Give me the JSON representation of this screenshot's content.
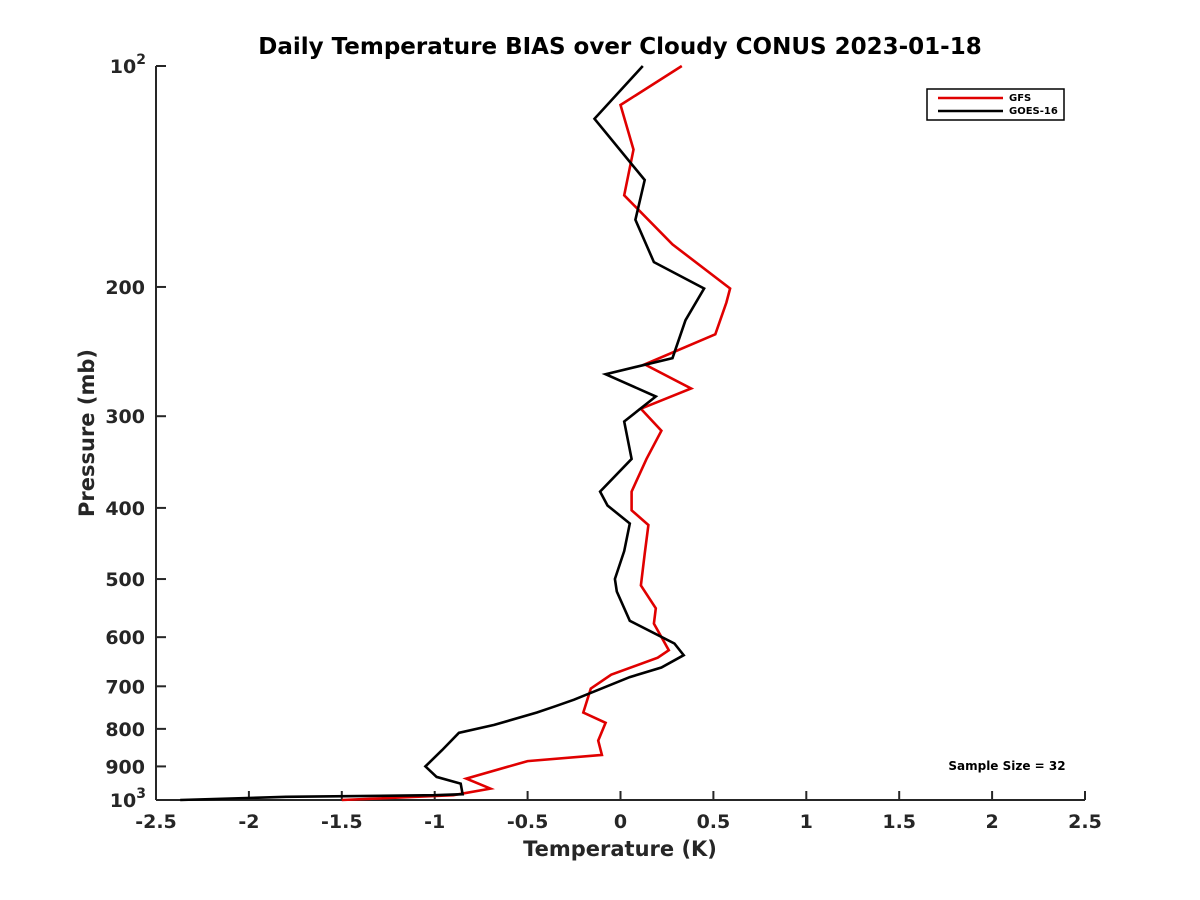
{
  "chart_data": {
    "type": "line",
    "title": "Daily Temperature BIAS over Cloudy CONUS 2023-01-18",
    "xlabel": "Temperature (K)",
    "ylabel": "Pressure (mb)",
    "xlim": [
      -2.5,
      2.5
    ],
    "ylim": [
      1000,
      100
    ],
    "y_scale": "log",
    "y_reversed": true,
    "grid": false,
    "legend_position": "top-right",
    "x_ticks": [
      {
        "value": -2.5,
        "label": "-2.5"
      },
      {
        "value": -2,
        "label": "-2"
      },
      {
        "value": -1.5,
        "label": "-1.5"
      },
      {
        "value": -1,
        "label": "-1"
      },
      {
        "value": -0.5,
        "label": "-0.5"
      },
      {
        "value": 0,
        "label": "0"
      },
      {
        "value": 0.5,
        "label": "0.5"
      },
      {
        "value": 1,
        "label": "1"
      },
      {
        "value": 1.5,
        "label": "1.5"
      },
      {
        "value": 2,
        "label": "2"
      },
      {
        "value": 2.5,
        "label": "2.5"
      }
    ],
    "y_ticks": [
      {
        "value": 100,
        "base": "10",
        "exp": "2"
      },
      {
        "value": 200,
        "label": "200"
      },
      {
        "value": 300,
        "label": "300"
      },
      {
        "value": 400,
        "label": "400"
      },
      {
        "value": 500,
        "label": "500"
      },
      {
        "value": 600,
        "label": "600"
      },
      {
        "value": 700,
        "label": "700"
      },
      {
        "value": 800,
        "label": "800"
      },
      {
        "value": 900,
        "label": "900"
      },
      {
        "value": 1000,
        "base": "10",
        "exp": "3"
      }
    ],
    "series": [
      {
        "name": "GFS",
        "color": "#e00000",
        "points": [
          {
            "x": -1.5,
            "p": 1000
          },
          {
            "x": -0.9,
            "p": 985
          },
          {
            "x": -0.7,
            "p": 965
          },
          {
            "x": -0.83,
            "p": 935
          },
          {
            "x": -0.5,
            "p": 885
          },
          {
            "x": -0.1,
            "p": 868
          },
          {
            "x": -0.12,
            "p": 830
          },
          {
            "x": -0.08,
            "p": 785
          },
          {
            "x": -0.2,
            "p": 760
          },
          {
            "x": -0.16,
            "p": 705
          },
          {
            "x": -0.05,
            "p": 675
          },
          {
            "x": 0.2,
            "p": 640
          },
          {
            "x": 0.26,
            "p": 625
          },
          {
            "x": 0.18,
            "p": 575
          },
          {
            "x": 0.19,
            "p": 548
          },
          {
            "x": 0.11,
            "p": 510
          },
          {
            "x": 0.13,
            "p": 462
          },
          {
            "x": 0.15,
            "p": 422
          },
          {
            "x": 0.06,
            "p": 403
          },
          {
            "x": 0.06,
            "p": 380
          },
          {
            "x": 0.14,
            "p": 343
          },
          {
            "x": 0.22,
            "p": 314
          },
          {
            "x": 0.11,
            "p": 293
          },
          {
            "x": 0.38,
            "p": 275
          },
          {
            "x": 0.13,
            "p": 255
          },
          {
            "x": 0.51,
            "p": 232
          },
          {
            "x": 0.57,
            "p": 210
          },
          {
            "x": 0.59,
            "p": 201
          },
          {
            "x": 0.28,
            "p": 175
          },
          {
            "x": 0.02,
            "p": 150
          },
          {
            "x": 0.07,
            "p": 130
          },
          {
            "x": 0.0,
            "p": 113
          },
          {
            "x": 0.33,
            "p": 100
          }
        ]
      },
      {
        "name": "GOES-16",
        "color": "#000000",
        "points": [
          {
            "x": -2.37,
            "p": 1000
          },
          {
            "x": -1.8,
            "p": 990
          },
          {
            "x": -1.0,
            "p": 985
          },
          {
            "x": -0.85,
            "p": 982
          },
          {
            "x": -0.86,
            "p": 950
          },
          {
            "x": -0.99,
            "p": 930
          },
          {
            "x": -1.05,
            "p": 900
          },
          {
            "x": -0.96,
            "p": 855
          },
          {
            "x": -0.87,
            "p": 810
          },
          {
            "x": -0.68,
            "p": 790
          },
          {
            "x": -0.45,
            "p": 760
          },
          {
            "x": -0.35,
            "p": 745
          },
          {
            "x": -0.25,
            "p": 730
          },
          {
            "x": 0.05,
            "p": 680
          },
          {
            "x": 0.22,
            "p": 660
          },
          {
            "x": 0.34,
            "p": 635
          },
          {
            "x": 0.29,
            "p": 612
          },
          {
            "x": 0.05,
            "p": 570
          },
          {
            "x": -0.02,
            "p": 520
          },
          {
            "x": -0.03,
            "p": 500
          },
          {
            "x": 0.02,
            "p": 458
          },
          {
            "x": 0.05,
            "p": 420
          },
          {
            "x": -0.07,
            "p": 397
          },
          {
            "x": -0.11,
            "p": 380
          },
          {
            "x": 0.06,
            "p": 343
          },
          {
            "x": 0.02,
            "p": 305
          },
          {
            "x": 0.19,
            "p": 282
          },
          {
            "x": -0.08,
            "p": 263
          },
          {
            "x": 0.28,
            "p": 250
          },
          {
            "x": 0.35,
            "p": 222
          },
          {
            "x": 0.45,
            "p": 201
          },
          {
            "x": 0.18,
            "p": 185
          },
          {
            "x": 0.08,
            "p": 162
          },
          {
            "x": 0.13,
            "p": 143
          },
          {
            "x": -0.14,
            "p": 118
          },
          {
            "x": 0.12,
            "p": 100
          }
        ]
      }
    ],
    "annotations": [
      "Sample Size = 32"
    ]
  }
}
